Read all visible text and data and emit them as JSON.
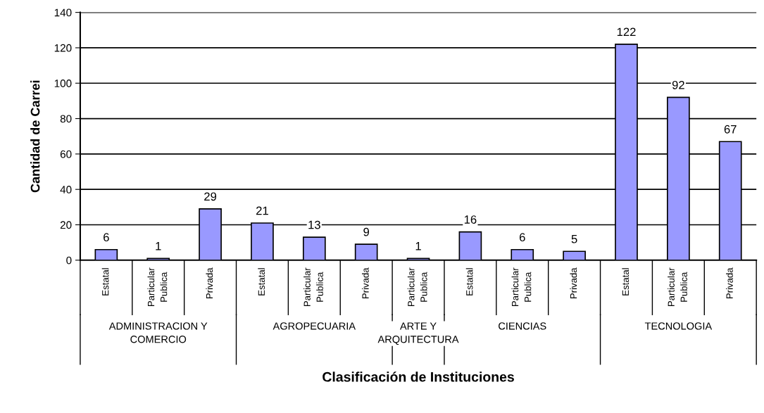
{
  "chart_data": {
    "type": "bar",
    "xlabel": "Clasificación de Instituciones",
    "ylabel": "Cantidad de Carrei",
    "categories": [
      "Estatal",
      "Particular\nPublica",
      "Privada",
      "Estatal",
      "Particular\nPublica",
      "Privada",
      "Particular\nPublica",
      "Estatal",
      "Particular\nPublica",
      "Privada",
      "Estatal",
      "Particular\nPublica",
      "Privada"
    ],
    "values": [
      6,
      1,
      29,
      21,
      13,
      9,
      1,
      16,
      6,
      5,
      122,
      92,
      67
    ],
    "color": "#9999ff",
    "ylim": [
      0,
      140
    ],
    "yticks": [
      0,
      20,
      40,
      60,
      80,
      100,
      120,
      140
    ],
    "grid": "y",
    "data_labels": true,
    "annotations": [
      "ADMINISTRACION Y\nCOMERCIO",
      "AGROPECUARIA",
      "ARTE Y\nARQUITECTURA",
      "CIENCIAS",
      "TECNOLOGIA"
    ]
  }
}
